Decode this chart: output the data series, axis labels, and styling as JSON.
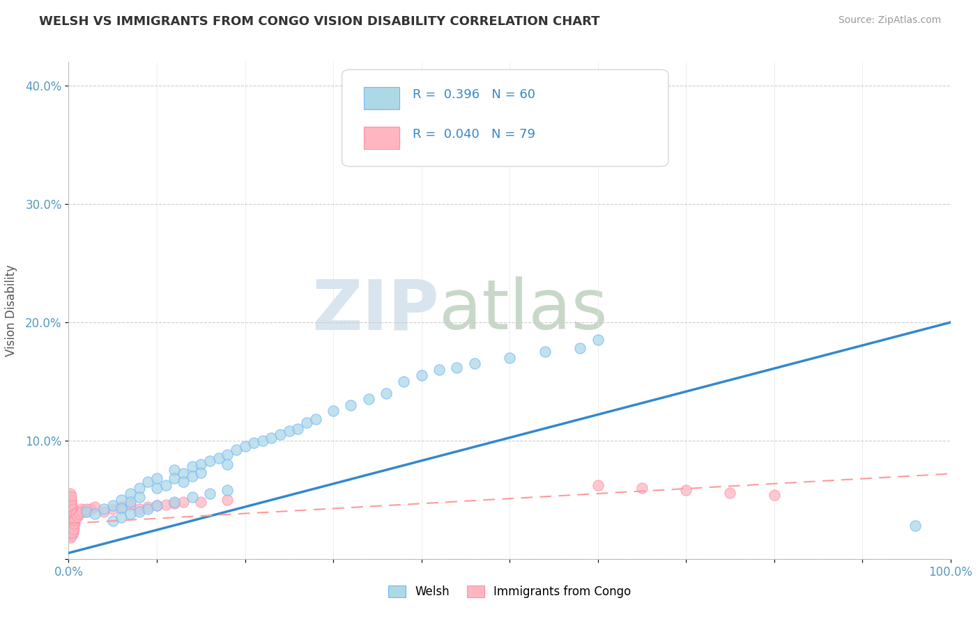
{
  "title": "WELSH VS IMMIGRANTS FROM CONGO VISION DISABILITY CORRELATION CHART",
  "source": "Source: ZipAtlas.com",
  "ylabel": "Vision Disability",
  "xlabel": "",
  "xlim": [
    0.0,
    1.0
  ],
  "ylim": [
    0.0,
    0.42
  ],
  "xticks": [
    0.0,
    0.1,
    0.2,
    0.3,
    0.4,
    0.5,
    0.6,
    0.7,
    0.8,
    0.9,
    1.0
  ],
  "xticklabels": [
    "0.0%",
    "",
    "",
    "",
    "",
    "",
    "",
    "",
    "",
    "",
    "100.0%"
  ],
  "yticks": [
    0.0,
    0.1,
    0.2,
    0.3,
    0.4
  ],
  "yticklabels": [
    "",
    "10.0%",
    "20.0%",
    "30.0%",
    "40.0%"
  ],
  "welsh_color": "#ADD8E6",
  "congo_color": "#FFB6C1",
  "welsh_edge_color": "#6EB5FF",
  "congo_edge_color": "#FF8FAB",
  "welsh_line_color": "#3388CC",
  "congo_line_color": "#FF9999",
  "welsh_R": 0.396,
  "welsh_N": 60,
  "congo_R": 0.04,
  "congo_N": 79,
  "welsh_x": [
    0.02,
    0.03,
    0.04,
    0.05,
    0.06,
    0.06,
    0.07,
    0.07,
    0.08,
    0.08,
    0.09,
    0.1,
    0.1,
    0.11,
    0.12,
    0.12,
    0.13,
    0.13,
    0.14,
    0.14,
    0.15,
    0.15,
    0.16,
    0.17,
    0.18,
    0.18,
    0.19,
    0.2,
    0.21,
    0.22,
    0.23,
    0.24,
    0.25,
    0.26,
    0.27,
    0.28,
    0.3,
    0.32,
    0.34,
    0.36,
    0.38,
    0.4,
    0.42,
    0.44,
    0.46,
    0.5,
    0.54,
    0.58,
    0.6,
    0.96,
    0.05,
    0.06,
    0.07,
    0.08,
    0.09,
    0.1,
    0.12,
    0.14,
    0.16,
    0.18
  ],
  "welsh_y": [
    0.04,
    0.038,
    0.042,
    0.045,
    0.05,
    0.043,
    0.055,
    0.048,
    0.06,
    0.052,
    0.065,
    0.06,
    0.068,
    0.062,
    0.075,
    0.068,
    0.072,
    0.065,
    0.078,
    0.07,
    0.08,
    0.073,
    0.083,
    0.085,
    0.088,
    0.08,
    0.092,
    0.095,
    0.098,
    0.1,
    0.102,
    0.105,
    0.108,
    0.11,
    0.115,
    0.118,
    0.125,
    0.13,
    0.135,
    0.14,
    0.15,
    0.155,
    0.16,
    0.162,
    0.165,
    0.17,
    0.175,
    0.178,
    0.185,
    0.028,
    0.032,
    0.035,
    0.038,
    0.04,
    0.042,
    0.045,
    0.048,
    0.052,
    0.055,
    0.058
  ],
  "congo_x": [
    0.002,
    0.002,
    0.002,
    0.002,
    0.002,
    0.002,
    0.002,
    0.002,
    0.002,
    0.002,
    0.002,
    0.002,
    0.002,
    0.002,
    0.002,
    0.003,
    0.003,
    0.003,
    0.003,
    0.003,
    0.003,
    0.003,
    0.003,
    0.003,
    0.003,
    0.004,
    0.004,
    0.004,
    0.004,
    0.004,
    0.004,
    0.005,
    0.005,
    0.005,
    0.005,
    0.006,
    0.006,
    0.007,
    0.008,
    0.009,
    0.01,
    0.012,
    0.015,
    0.02,
    0.025,
    0.03,
    0.04,
    0.05,
    0.06,
    0.07,
    0.08,
    0.09,
    0.1,
    0.11,
    0.12,
    0.13,
    0.15,
    0.18,
    0.6,
    0.65,
    0.7,
    0.75,
    0.8,
    0.002,
    0.002,
    0.003,
    0.003,
    0.003,
    0.004,
    0.004,
    0.005,
    0.005,
    0.006,
    0.007,
    0.008,
    0.01,
    0.012,
    0.015,
    0.02
  ],
  "congo_y": [
    0.02,
    0.022,
    0.025,
    0.028,
    0.03,
    0.032,
    0.035,
    0.038,
    0.04,
    0.042,
    0.045,
    0.048,
    0.05,
    0.052,
    0.055,
    0.02,
    0.025,
    0.03,
    0.035,
    0.038,
    0.042,
    0.045,
    0.048,
    0.05,
    0.053,
    0.02,
    0.025,
    0.03,
    0.035,
    0.04,
    0.045,
    0.022,
    0.028,
    0.035,
    0.042,
    0.025,
    0.038,
    0.03,
    0.035,
    0.04,
    0.038,
    0.04,
    0.042,
    0.04,
    0.042,
    0.044,
    0.04,
    0.042,
    0.044,
    0.046,
    0.042,
    0.044,
    0.045,
    0.046,
    0.047,
    0.048,
    0.048,
    0.05,
    0.062,
    0.06,
    0.058,
    0.056,
    0.054,
    0.018,
    0.023,
    0.022,
    0.027,
    0.032,
    0.022,
    0.028,
    0.025,
    0.032,
    0.03,
    0.033,
    0.038,
    0.036,
    0.038,
    0.04,
    0.042
  ],
  "background_color": "#FFFFFF",
  "grid_color": "#CCCCCC",
  "watermark_zip": "ZIP",
  "watermark_atlas": "atlas",
  "watermark_color": "#E2E8F0"
}
